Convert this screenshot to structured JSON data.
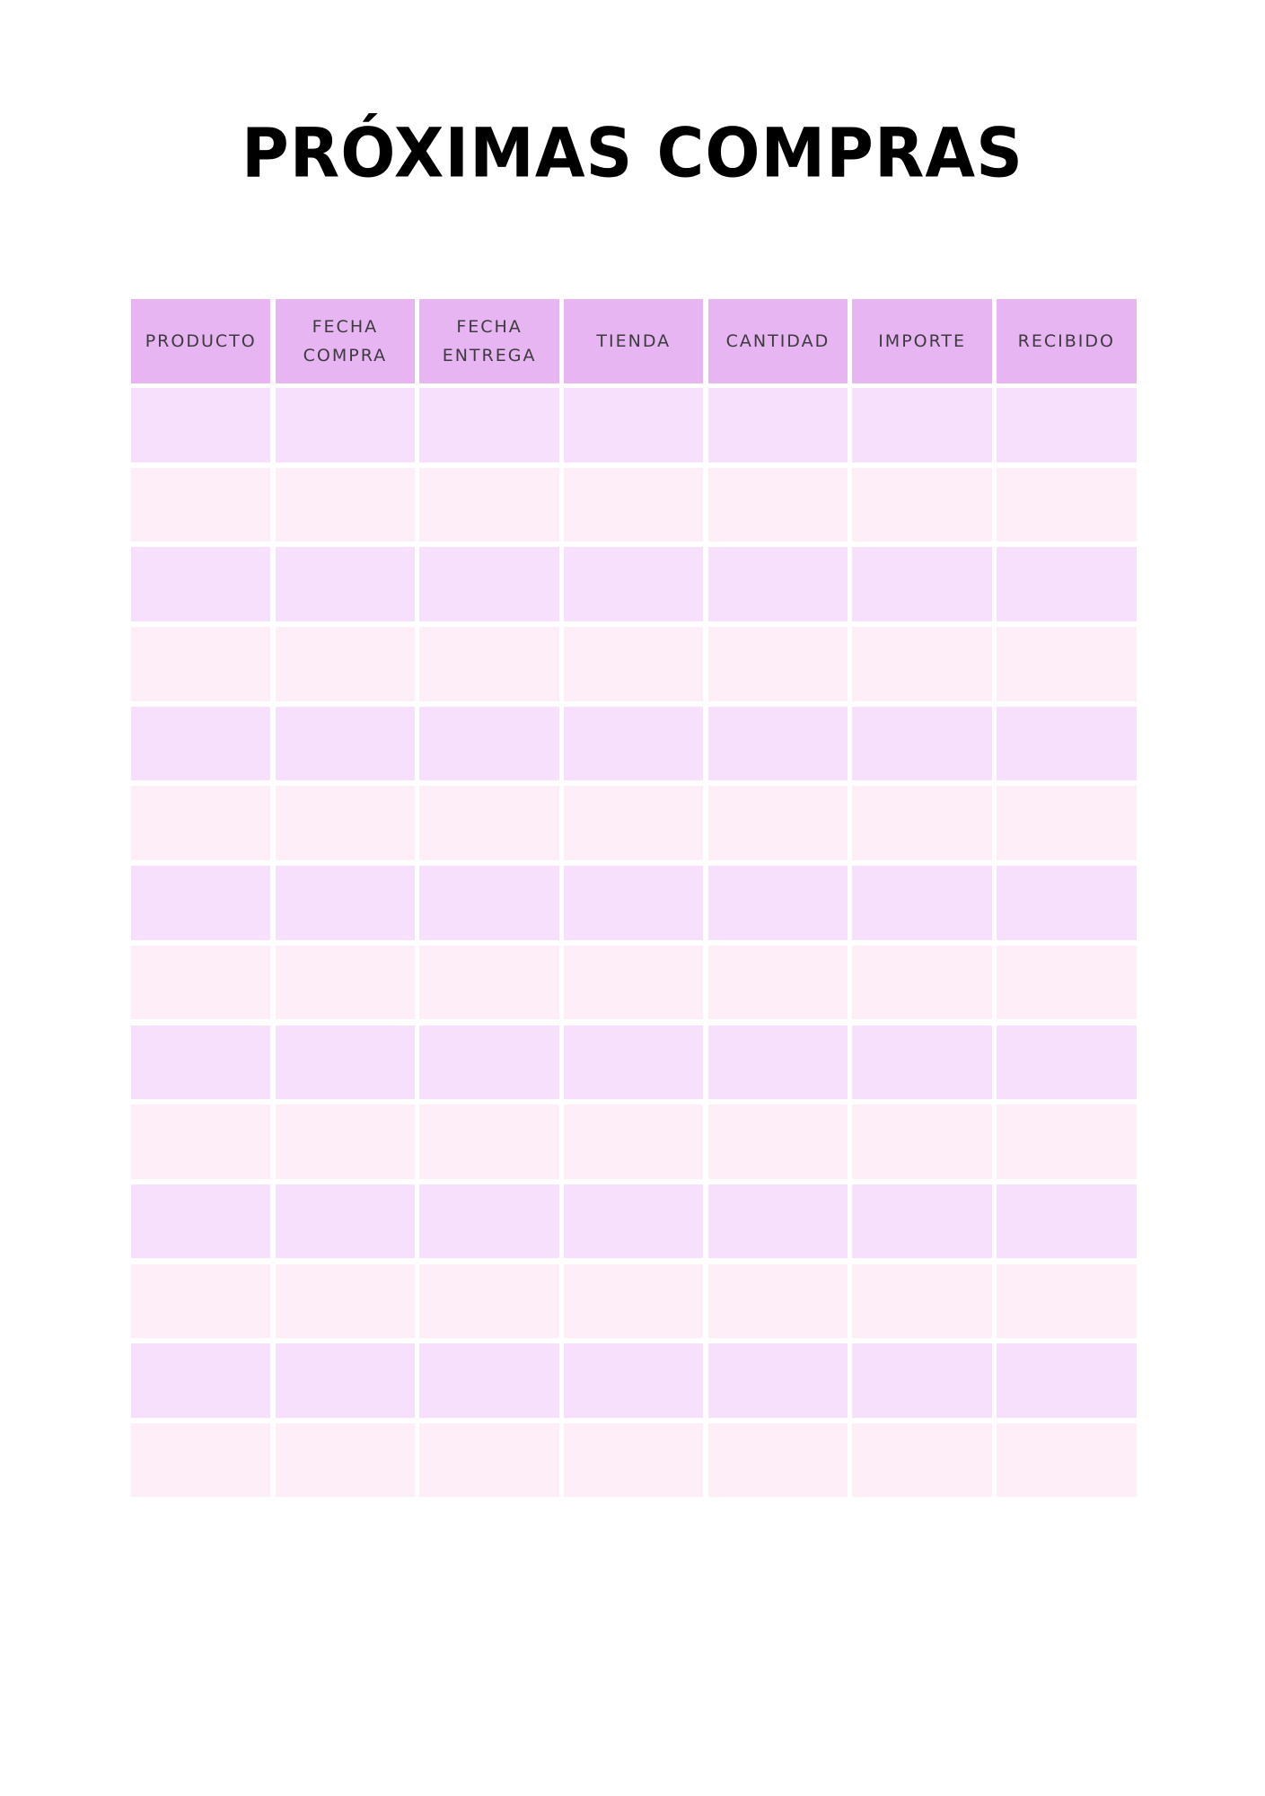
{
  "title": "PRÓXIMAS COMPRAS",
  "table": {
    "headers": [
      "PRODUCTO",
      "FECHA\nCOMPRA",
      "FECHA\nENTREGA",
      "TIENDA",
      "CANTIDAD",
      "IMPORTE",
      "RECIBIDO"
    ],
    "row_count": 14
  },
  "colors": {
    "header": "#e6b5f2",
    "row_odd": "#f6e0fb",
    "row_even": "#fdeef8"
  }
}
